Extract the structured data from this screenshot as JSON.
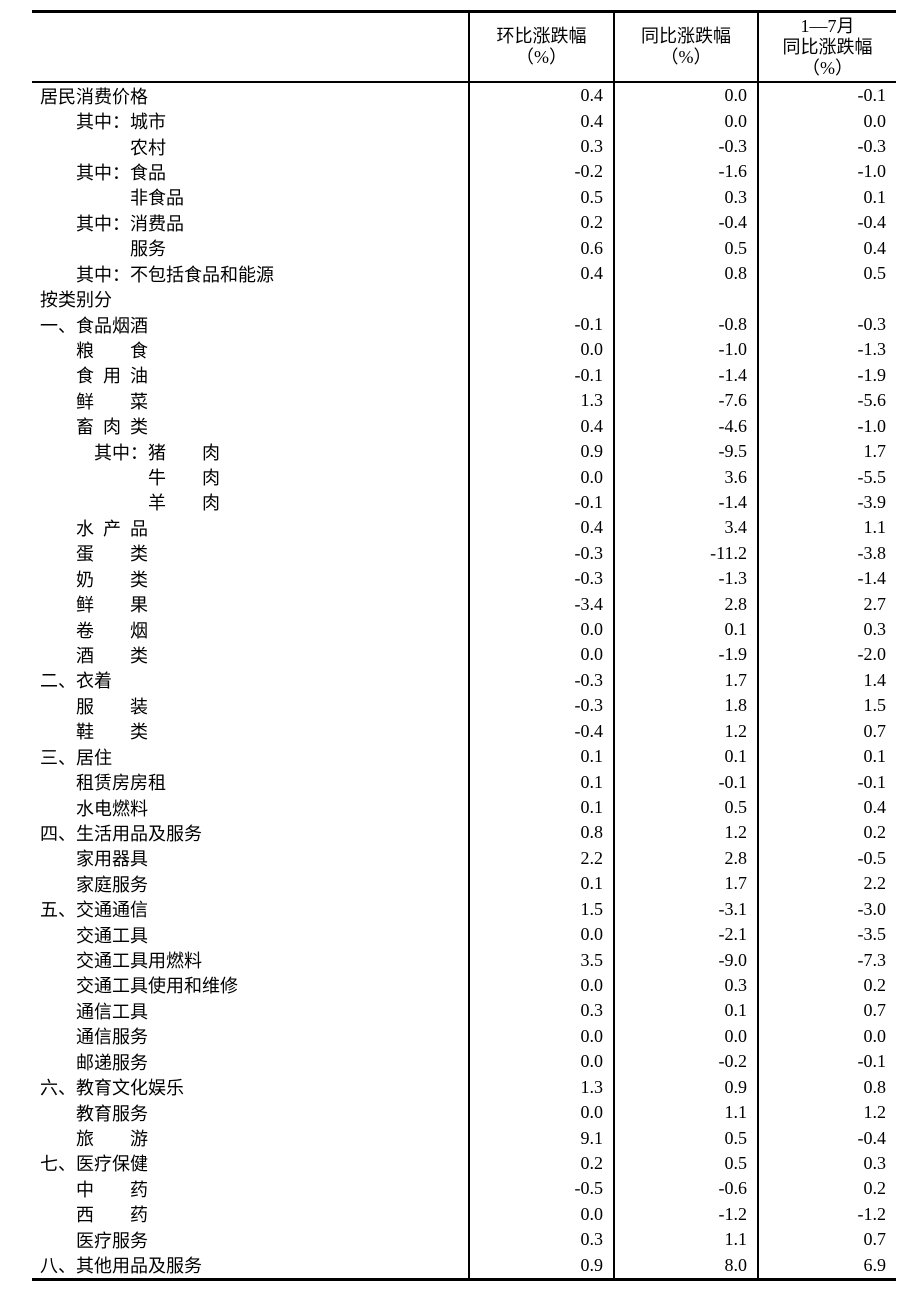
{
  "table": {
    "columns": [
      {
        "name": "mom",
        "lines": [
          "环比涨跌幅",
          "（%）"
        ]
      },
      {
        "name": "yoy",
        "lines": [
          "同比涨跌幅",
          "（%）"
        ]
      },
      {
        "name": "ytd",
        "lines": [
          "1—7月",
          "同比涨跌幅",
          "（%）"
        ]
      }
    ],
    "rows": [
      {
        "label": "居民消费价格",
        "indent": 0,
        "values": [
          "0.4",
          "0.0",
          "-0.1"
        ]
      },
      {
        "label": "其中：城市",
        "indent": 2,
        "values": [
          "0.4",
          "0.0",
          "0.0"
        ]
      },
      {
        "label": "农村",
        "indent": 5,
        "values": [
          "0.3",
          "-0.3",
          "-0.3"
        ]
      },
      {
        "label": "其中：食品",
        "indent": 2,
        "values": [
          "-0.2",
          "-1.6",
          "-1.0"
        ]
      },
      {
        "label": "非食品",
        "indent": 5,
        "values": [
          "0.5",
          "0.3",
          "0.1"
        ]
      },
      {
        "label": "其中：消费品",
        "indent": 2,
        "values": [
          "0.2",
          "-0.4",
          "-0.4"
        ]
      },
      {
        "label": "服务",
        "indent": 5,
        "values": [
          "0.6",
          "0.5",
          "0.4"
        ]
      },
      {
        "label": "其中：不包括食品和能源",
        "indent": 2,
        "values": [
          "0.4",
          "0.8",
          "0.5"
        ]
      },
      {
        "label": "按类别分",
        "indent": 0,
        "values": [
          "",
          "",
          ""
        ]
      },
      {
        "label": "一、食品烟酒",
        "indent": 0,
        "values": [
          "-0.1",
          "-0.8",
          "-0.3"
        ]
      },
      {
        "label": "粮　　食",
        "indent": 2,
        "values": [
          "0.0",
          "-1.0",
          "-1.3"
        ]
      },
      {
        "label": "食  用  油",
        "indent": 2,
        "values": [
          "-0.1",
          "-1.4",
          "-1.9"
        ]
      },
      {
        "label": "鲜　　菜",
        "indent": 2,
        "values": [
          "1.3",
          "-7.6",
          "-5.6"
        ]
      },
      {
        "label": "畜  肉  类",
        "indent": 2,
        "values": [
          "0.4",
          "-4.6",
          "-1.0"
        ]
      },
      {
        "label": "其中：猪　　肉",
        "indent": 3,
        "values": [
          "0.9",
          "-9.5",
          "1.7"
        ]
      },
      {
        "label": "牛　　肉",
        "indent": 6,
        "values": [
          "0.0",
          "3.6",
          "-5.5"
        ]
      },
      {
        "label": "羊　　肉",
        "indent": 6,
        "values": [
          "-0.1",
          "-1.4",
          "-3.9"
        ]
      },
      {
        "label": "水  产  品",
        "indent": 2,
        "values": [
          "0.4",
          "3.4",
          "1.1"
        ]
      },
      {
        "label": "蛋　　类",
        "indent": 2,
        "values": [
          "-0.3",
          "-11.2",
          "-3.8"
        ]
      },
      {
        "label": "奶　　类",
        "indent": 2,
        "values": [
          "-0.3",
          "-1.3",
          "-1.4"
        ]
      },
      {
        "label": "鲜　　果",
        "indent": 2,
        "values": [
          "-3.4",
          "2.8",
          "2.7"
        ]
      },
      {
        "label": "卷　　烟",
        "indent": 2,
        "values": [
          "0.0",
          "0.1",
          "0.3"
        ]
      },
      {
        "label": "酒　　类",
        "indent": 2,
        "values": [
          "0.0",
          "-1.9",
          "-2.0"
        ]
      },
      {
        "label": "二、衣着",
        "indent": 0,
        "values": [
          "-0.3",
          "1.7",
          "1.4"
        ]
      },
      {
        "label": "服　　装",
        "indent": 2,
        "values": [
          "-0.3",
          "1.8",
          "1.5"
        ]
      },
      {
        "label": "鞋　　类",
        "indent": 2,
        "values": [
          "-0.4",
          "1.2",
          "0.7"
        ]
      },
      {
        "label": "三、居住",
        "indent": 0,
        "values": [
          "0.1",
          "0.1",
          "0.1"
        ]
      },
      {
        "label": "租赁房房租",
        "indent": 2,
        "values": [
          "0.1",
          "-0.1",
          "-0.1"
        ]
      },
      {
        "label": "水电燃料",
        "indent": 2,
        "values": [
          "0.1",
          "0.5",
          "0.4"
        ]
      },
      {
        "label": "四、生活用品及服务",
        "indent": 0,
        "values": [
          "0.8",
          "1.2",
          "0.2"
        ]
      },
      {
        "label": "家用器具",
        "indent": 2,
        "values": [
          "2.2",
          "2.8",
          "-0.5"
        ]
      },
      {
        "label": "家庭服务",
        "indent": 2,
        "values": [
          "0.1",
          "1.7",
          "2.2"
        ]
      },
      {
        "label": "五、交通通信",
        "indent": 0,
        "values": [
          "1.5",
          "-3.1",
          "-3.0"
        ]
      },
      {
        "label": "交通工具",
        "indent": 2,
        "values": [
          "0.0",
          "-2.1",
          "-3.5"
        ]
      },
      {
        "label": "交通工具用燃料",
        "indent": 2,
        "values": [
          "3.5",
          "-9.0",
          "-7.3"
        ]
      },
      {
        "label": "交通工具使用和维修",
        "indent": 2,
        "values": [
          "0.0",
          "0.3",
          "0.2"
        ]
      },
      {
        "label": "通信工具",
        "indent": 2,
        "values": [
          "0.3",
          "0.1",
          "0.7"
        ]
      },
      {
        "label": "通信服务",
        "indent": 2,
        "values": [
          "0.0",
          "0.0",
          "0.0"
        ]
      },
      {
        "label": "邮递服务",
        "indent": 2,
        "values": [
          "0.0",
          "-0.2",
          "-0.1"
        ]
      },
      {
        "label": "六、教育文化娱乐",
        "indent": 0,
        "values": [
          "1.3",
          "0.9",
          "0.8"
        ]
      },
      {
        "label": "教育服务",
        "indent": 2,
        "values": [
          "0.0",
          "1.1",
          "1.2"
        ]
      },
      {
        "label": "旅　　游",
        "indent": 2,
        "values": [
          "9.1",
          "0.5",
          "-0.4"
        ]
      },
      {
        "label": "七、医疗保健",
        "indent": 0,
        "values": [
          "0.2",
          "0.5",
          "0.3"
        ]
      },
      {
        "label": "中　　药",
        "indent": 2,
        "values": [
          "-0.5",
          "-0.6",
          "0.2"
        ]
      },
      {
        "label": "西　　药",
        "indent": 2,
        "values": [
          "0.0",
          "-1.2",
          "-1.2"
        ]
      },
      {
        "label": "医疗服务",
        "indent": 2,
        "values": [
          "0.3",
          "1.1",
          "0.7"
        ]
      },
      {
        "label": "八、其他用品及服务",
        "indent": 0,
        "values": [
          "0.9",
          "8.0",
          "6.9"
        ]
      }
    ]
  }
}
